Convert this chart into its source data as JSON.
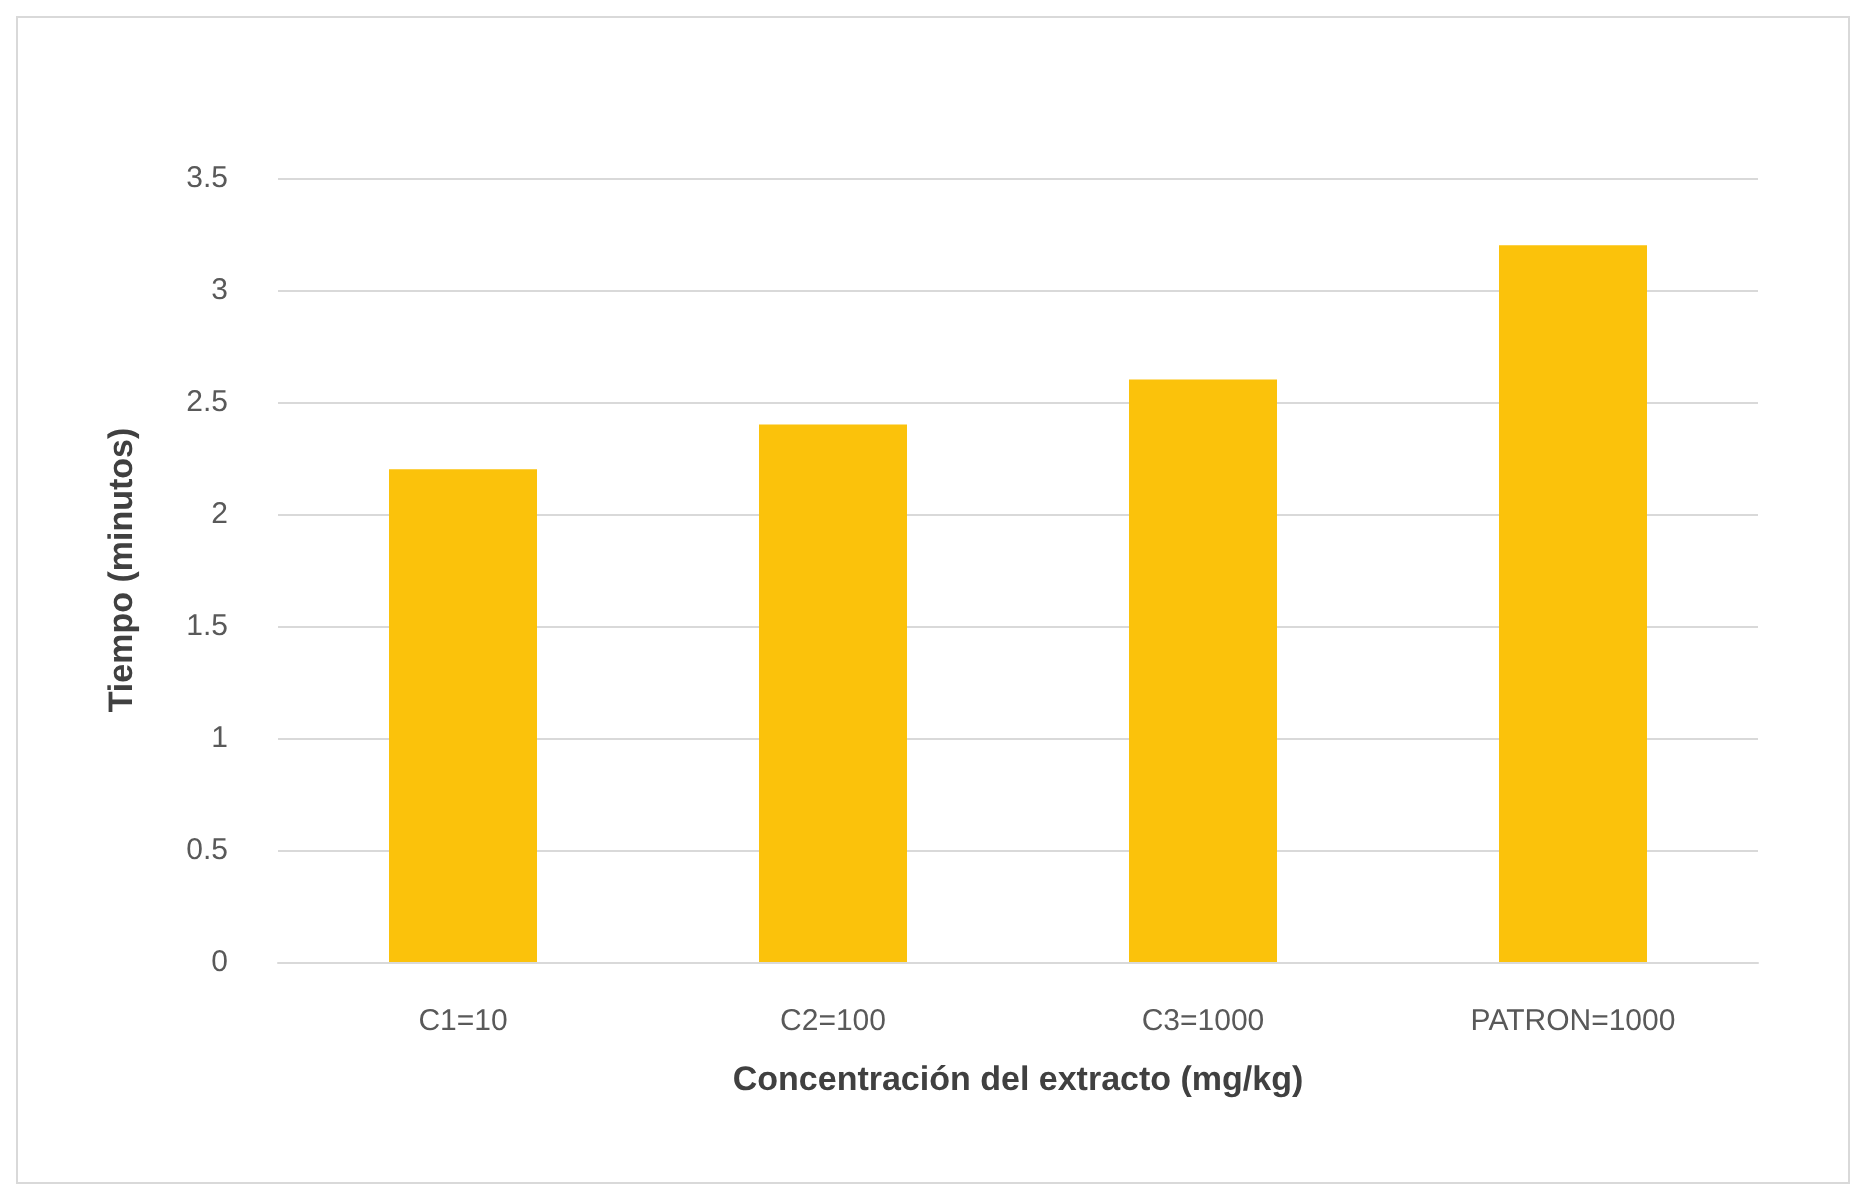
{
  "chart_data": {
    "type": "bar",
    "xlabel": "Concentración del extracto (mg/kg)",
    "ylabel": "Tiempo (minutos)",
    "categories": [
      "C1=10",
      "C2=100",
      "C3=1000",
      "PATRON=1000"
    ],
    "values": [
      2.2,
      2.4,
      2.6,
      3.2
    ],
    "color": "#fbc20b",
    "ylim": [
      0,
      3.5
    ],
    "yticks": [
      0,
      0.5,
      1,
      1.5,
      2,
      2.5,
      3,
      3.5
    ],
    "grid": "y"
  }
}
